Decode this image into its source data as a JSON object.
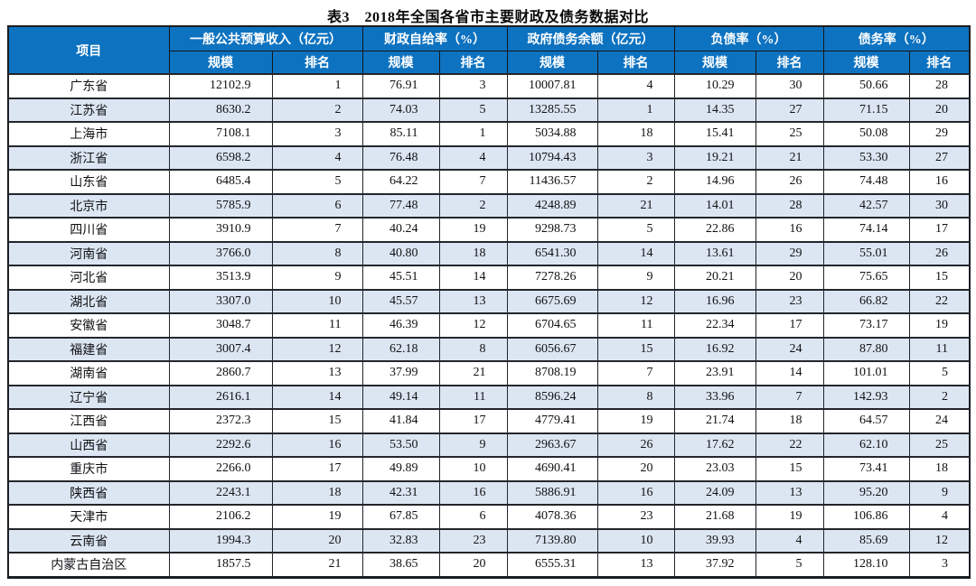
{
  "title": "表3　2018年全国各省市主要财政及债务数据对比",
  "colors": {
    "header_bg": "#0d72c0",
    "header_text": "#ffffff",
    "stripe_bg": "#dce6f2",
    "border": "#1b1e23",
    "body_text": "#101114"
  },
  "table": {
    "corner_label": "项目",
    "groups": [
      "一般公共预算收入（亿元）",
      "财政自给率（%）",
      "政府债务余额（亿元）",
      "负债率（%）",
      "债务率（%）"
    ],
    "sub_headers": [
      "规模",
      "排名"
    ]
  },
  "chart_data": {
    "type": "table",
    "title": "表3　2018年全国各省市主要财政及债务数据对比",
    "columns": [
      "项目",
      "一般公共预算收入 规模（亿元）",
      "一般公共预算收入 排名",
      "财政自给率 规模（%）",
      "财政自给率 排名",
      "政府债务余额 规模（亿元）",
      "政府债务余额 排名",
      "负债率 规模（%）",
      "负债率 排名",
      "债务率 规模（%）",
      "债务率 排名"
    ],
    "rows": [
      [
        "广东省",
        "12102.9",
        "1",
        "76.91",
        "3",
        "10007.81",
        "4",
        "10.29",
        "30",
        "50.66",
        "28"
      ],
      [
        "江苏省",
        "8630.2",
        "2",
        "74.03",
        "5",
        "13285.55",
        "1",
        "14.35",
        "27",
        "71.15",
        "20"
      ],
      [
        "上海市",
        "7108.1",
        "3",
        "85.11",
        "1",
        "5034.88",
        "18",
        "15.41",
        "25",
        "50.08",
        "29"
      ],
      [
        "浙江省",
        "6598.2",
        "4",
        "76.48",
        "4",
        "10794.43",
        "3",
        "19.21",
        "21",
        "53.30",
        "27"
      ],
      [
        "山东省",
        "6485.4",
        "5",
        "64.22",
        "7",
        "11436.57",
        "2",
        "14.96",
        "26",
        "74.48",
        "16"
      ],
      [
        "北京市",
        "5785.9",
        "6",
        "77.48",
        "2",
        "4248.89",
        "21",
        "14.01",
        "28",
        "42.57",
        "30"
      ],
      [
        "四川省",
        "3910.9",
        "7",
        "40.24",
        "19",
        "9298.73",
        "5",
        "22.86",
        "16",
        "74.14",
        "17"
      ],
      [
        "河南省",
        "3766.0",
        "8",
        "40.80",
        "18",
        "6541.30",
        "14",
        "13.61",
        "29",
        "55.01",
        "26"
      ],
      [
        "河北省",
        "3513.9",
        "9",
        "45.51",
        "14",
        "7278.26",
        "9",
        "20.21",
        "20",
        "75.65",
        "15"
      ],
      [
        "湖北省",
        "3307.0",
        "10",
        "45.57",
        "13",
        "6675.69",
        "12",
        "16.96",
        "23",
        "66.82",
        "22"
      ],
      [
        "安徽省",
        "3048.7",
        "11",
        "46.39",
        "12",
        "6704.65",
        "11",
        "22.34",
        "17",
        "73.17",
        "19"
      ],
      [
        "福建省",
        "3007.4",
        "12",
        "62.18",
        "8",
        "6056.67",
        "15",
        "16.92",
        "24",
        "87.80",
        "11"
      ],
      [
        "湖南省",
        "2860.7",
        "13",
        "37.99",
        "21",
        "8708.19",
        "7",
        "23.91",
        "14",
        "101.01",
        "5"
      ],
      [
        "辽宁省",
        "2616.1",
        "14",
        "49.14",
        "11",
        "8596.24",
        "8",
        "33.96",
        "7",
        "142.93",
        "2"
      ],
      [
        "江西省",
        "2372.3",
        "15",
        "41.84",
        "17",
        "4779.41",
        "19",
        "21.74",
        "18",
        "64.57",
        "24"
      ],
      [
        "山西省",
        "2292.6",
        "16",
        "53.50",
        "9",
        "2963.67",
        "26",
        "17.62",
        "22",
        "62.10",
        "25"
      ],
      [
        "重庆市",
        "2266.0",
        "17",
        "49.89",
        "10",
        "4690.41",
        "20",
        "23.03",
        "15",
        "73.41",
        "18"
      ],
      [
        "陕西省",
        "2243.1",
        "18",
        "42.31",
        "16",
        "5886.91",
        "16",
        "24.09",
        "13",
        "95.20",
        "9"
      ],
      [
        "天津市",
        "2106.2",
        "19",
        "67.85",
        "6",
        "4078.36",
        "23",
        "21.68",
        "19",
        "106.86",
        "4"
      ],
      [
        "云南省",
        "1994.3",
        "20",
        "32.83",
        "23",
        "7139.80",
        "10",
        "39.93",
        "4",
        "85.69",
        "12"
      ],
      [
        "内蒙古自治区",
        "1857.5",
        "21",
        "38.65",
        "20",
        "6555.31",
        "13",
        "37.92",
        "5",
        "128.10",
        "3"
      ]
    ]
  }
}
